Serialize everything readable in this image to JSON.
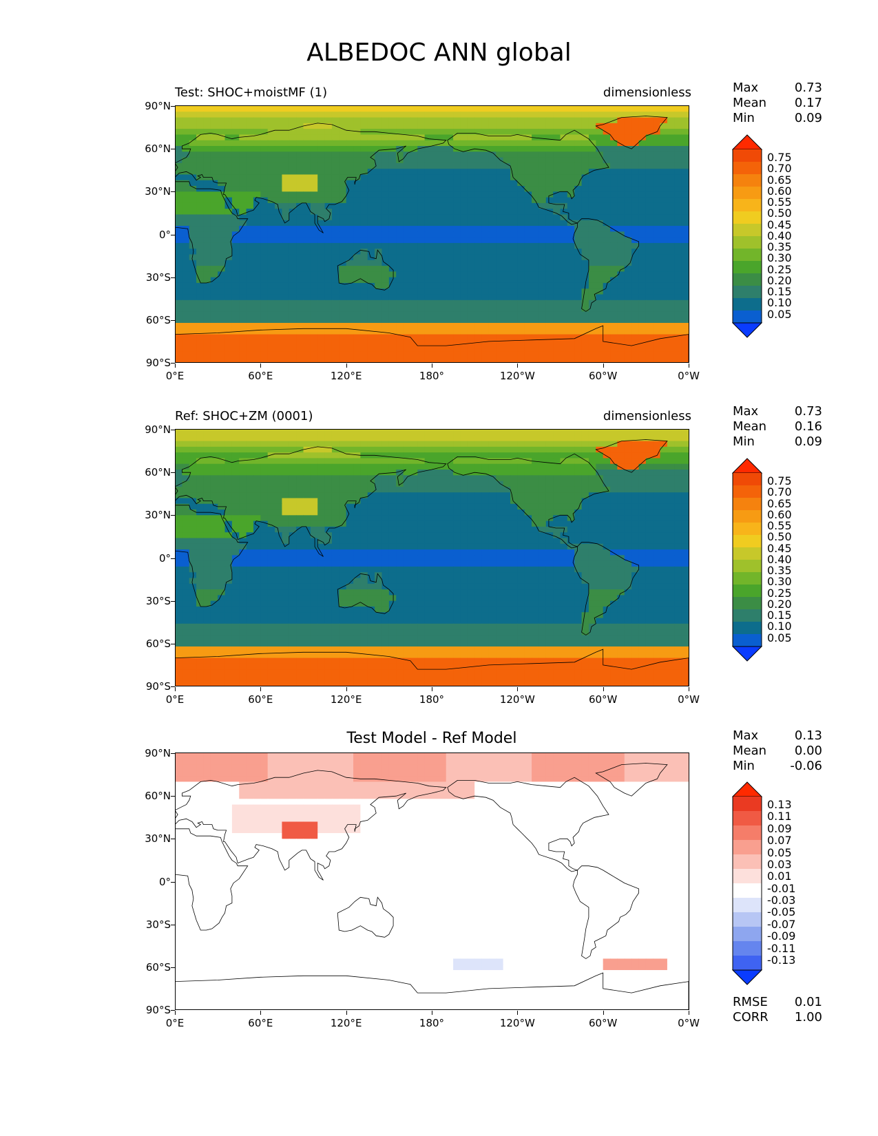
{
  "title": "ALBEDOC ANN global",
  "colors": {
    "albedo_levels": [
      "#0a3cff",
      "#0a5fd0",
      "#0d6d8c",
      "#2e7f6b",
      "#3b8d45",
      "#4aa52b",
      "#72b52a",
      "#9fc12b",
      "#c7c82a",
      "#f0cc20",
      "#f8b41a",
      "#f79b13",
      "#f5820e",
      "#f46309",
      "#f04a06",
      "#ff2a00"
    ],
    "diff_levels": [
      "#0a3cff",
      "#3f63f2",
      "#6585ee",
      "#8ea6ef",
      "#b7c6f4",
      "#dde4fa",
      "#ffffff",
      "#fde0dc",
      "#fbc0b6",
      "#f99f8f",
      "#f57d69",
      "#f05a44",
      "#ea3a22",
      "#ff2a00"
    ],
    "coast": "#000000"
  },
  "chart_data": [
    {
      "type": "heatmap",
      "panel": "test",
      "title_left": "Test: SHOC+moistMF (1)",
      "title_right": "dimensionless",
      "stats": {
        "max_label": "Max",
        "max": "0.73",
        "mean_label": "Mean",
        "mean": "0.17",
        "min_label": "Min",
        "min": "0.09"
      },
      "colorbar": {
        "ticks": [
          "0.75",
          "0.70",
          "0.65",
          "0.60",
          "0.55",
          "0.50",
          "0.45",
          "0.40",
          "0.35",
          "0.30",
          "0.25",
          "0.20",
          "0.15",
          "0.10",
          "0.05"
        ],
        "extend": "both"
      },
      "xlabels": [
        "0°E",
        "60°E",
        "120°E",
        "180°",
        "120°W",
        "60°W",
        "0°W"
      ],
      "ylabels": [
        "90°N",
        "60°N",
        "30°N",
        "0°",
        "30°S",
        "60°S",
        "90°S"
      ],
      "xlim": [
        0,
        360
      ],
      "ylim": [
        -90,
        90
      ]
    },
    {
      "type": "heatmap",
      "panel": "ref",
      "title_left": "Ref: SHOC+ZM (0001)",
      "title_right": "dimensionless",
      "stats": {
        "max_label": "Max",
        "max": "0.73",
        "mean_label": "Mean",
        "mean": "0.16",
        "min_label": "Min",
        "min": "0.09"
      },
      "colorbar": {
        "ticks": [
          "0.75",
          "0.70",
          "0.65",
          "0.60",
          "0.55",
          "0.50",
          "0.45",
          "0.40",
          "0.35",
          "0.30",
          "0.25",
          "0.20",
          "0.15",
          "0.10",
          "0.05"
        ],
        "extend": "both"
      },
      "xlabels": [
        "0°E",
        "60°E",
        "120°E",
        "180°",
        "120°W",
        "60°W",
        "0°W"
      ],
      "ylabels": [
        "90°N",
        "60°N",
        "30°N",
        "0°",
        "30°S",
        "60°S",
        "90°S"
      ],
      "xlim": [
        0,
        360
      ],
      "ylim": [
        -90,
        90
      ]
    },
    {
      "type": "heatmap",
      "panel": "diff",
      "title_center": "Test Model - Ref Model",
      "stats": {
        "max_label": "Max",
        "max": "0.13",
        "mean_label": "Mean",
        "mean": "0.00",
        "min_label": "Min",
        "min": "-0.06"
      },
      "colorbar": {
        "ticks": [
          "0.13",
          "0.11",
          "0.09",
          "0.07",
          "0.05",
          "0.03",
          "0.01",
          "-0.01",
          "-0.03",
          "-0.05",
          "-0.07",
          "-0.09",
          "-0.11",
          "-0.13"
        ],
        "extend": "both"
      },
      "metrics": {
        "rmse_label": "RMSE",
        "rmse": "0.01",
        "corr_label": "CORR",
        "corr": "1.00"
      },
      "xlabels": [
        "0°E",
        "60°E",
        "120°E",
        "180°",
        "120°W",
        "60°W",
        "0°W"
      ],
      "ylabels": [
        "90°N",
        "60°N",
        "30°N",
        "0°",
        "30°S",
        "60°S",
        "90°S"
      ],
      "xlim": [
        0,
        360
      ],
      "ylim": [
        -90,
        90
      ]
    }
  ]
}
